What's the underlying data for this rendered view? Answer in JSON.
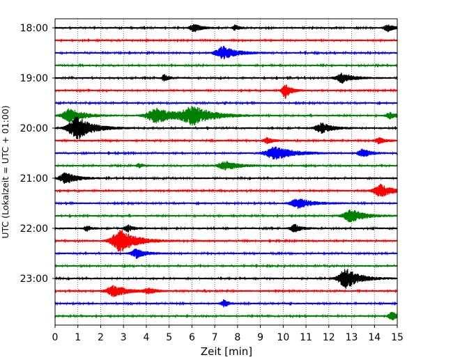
{
  "chart_data": {
    "type": "line",
    "title": "",
    "xlabel": "Zeit  [min]",
    "ylabel": "UTC (Lokalzeit = UTC + 01:00)",
    "xlim": [
      0,
      15
    ],
    "x_ticks": [
      "0",
      "1",
      "2",
      "3",
      "4",
      "5",
      "6",
      "7",
      "8",
      "9",
      "10",
      "11",
      "12",
      "13",
      "14",
      "15"
    ],
    "y_ticks": [
      "18:00",
      "19:00",
      "20:00",
      "21:00",
      "22:00",
      "23:00"
    ],
    "grid": "vertical dotted at each minute",
    "colors": [
      "#000000",
      "#ff0000",
      "#0000ff",
      "#008000"
    ],
    "trace_interval_min": 15,
    "traces": [
      {
        "start": "18:00",
        "color": "#000000",
        "events": [
          [
            6.1,
            0.3,
            6
          ],
          [
            7.9,
            0.2,
            4
          ],
          [
            14.6,
            0.3,
            5
          ]
        ]
      },
      {
        "start": "18:15",
        "color": "#ff0000",
        "events": []
      },
      {
        "start": "18:30",
        "color": "#0000ff",
        "events": [
          [
            7.4,
            0.6,
            9
          ]
        ]
      },
      {
        "start": "18:45",
        "color": "#008000",
        "events": []
      },
      {
        "start": "19:00",
        "color": "#000000",
        "events": [
          [
            4.8,
            0.2,
            5
          ],
          [
            12.6,
            0.5,
            7
          ]
        ]
      },
      {
        "start": "19:15",
        "color": "#ff0000",
        "events": [
          [
            10.1,
            0.25,
            11
          ]
        ]
      },
      {
        "start": "19:30",
        "color": "#0000ff",
        "events": []
      },
      {
        "start": "19:45",
        "color": "#008000",
        "events": [
          [
            0.7,
            0.6,
            10
          ],
          [
            4.5,
            0.8,
            11
          ],
          [
            6.1,
            0.9,
            12
          ],
          [
            14.7,
            0.3,
            5
          ]
        ]
      },
      {
        "start": "20:00",
        "color": "#000000",
        "events": [
          [
            1.0,
            0.7,
            16
          ],
          [
            11.7,
            0.5,
            7
          ]
        ]
      },
      {
        "start": "20:15",
        "color": "#ff0000",
        "events": [
          [
            9.3,
            0.3,
            4
          ],
          [
            14.2,
            0.3,
            4
          ]
        ]
      },
      {
        "start": "20:30",
        "color": "#0000ff",
        "events": [
          [
            9.7,
            0.8,
            9
          ],
          [
            13.5,
            0.35,
            6
          ]
        ]
      },
      {
        "start": "20:45",
        "color": "#008000",
        "events": [
          [
            7.5,
            0.6,
            6
          ],
          [
            3.7,
            0.2,
            3
          ]
        ]
      },
      {
        "start": "21:00",
        "color": "#000000",
        "events": [
          [
            0.5,
            0.5,
            8
          ]
        ]
      },
      {
        "start": "21:15",
        "color": "#ff0000",
        "events": [
          [
            14.3,
            0.55,
            9
          ]
        ]
      },
      {
        "start": "21:30",
        "color": "#0000ff",
        "events": [
          [
            10.7,
            0.6,
            7
          ]
        ]
      },
      {
        "start": "21:45",
        "color": "#008000",
        "events": [
          [
            13.0,
            0.6,
            9
          ]
        ]
      },
      {
        "start": "22:00",
        "color": "#000000",
        "events": [
          [
            1.4,
            0.2,
            4
          ],
          [
            3.2,
            0.25,
            5
          ],
          [
            10.5,
            0.3,
            6
          ]
        ]
      },
      {
        "start": "22:15",
        "color": "#ff0000",
        "events": [
          [
            2.9,
            0.7,
            16
          ]
        ]
      },
      {
        "start": "22:30",
        "color": "#0000ff",
        "events": [
          [
            3.6,
            0.4,
            7
          ]
        ]
      },
      {
        "start": "22:45",
        "color": "#008000",
        "events": []
      },
      {
        "start": "23:00",
        "color": "#000000",
        "events": [
          [
            12.8,
            0.6,
            14
          ]
        ]
      },
      {
        "start": "23:15",
        "color": "#ff0000",
        "events": [
          [
            2.6,
            0.6,
            8
          ],
          [
            4.1,
            0.3,
            4
          ]
        ]
      },
      {
        "start": "23:30",
        "color": "#0000ff",
        "events": [
          [
            7.4,
            0.2,
            6
          ]
        ]
      },
      {
        "start": "23:45",
        "color": "#008000",
        "events": [
          [
            14.8,
            0.3,
            6
          ]
        ]
      }
    ]
  }
}
